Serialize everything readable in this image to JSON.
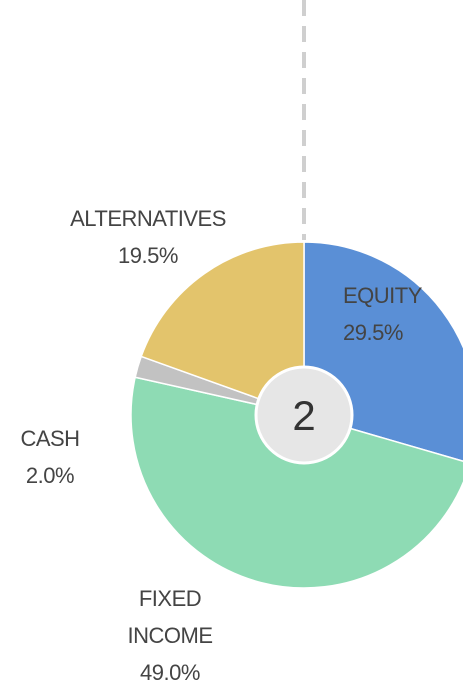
{
  "chart_data": {
    "type": "pie",
    "categories": [
      "EQUITY",
      "FIXED INCOME",
      "CASH",
      "ALTERNATIVES"
    ],
    "values": [
      29.5,
      49.0,
      2.0,
      19.5
    ],
    "value_labels": [
      "29.5%",
      "49.0%",
      "2.0%",
      "19.5%"
    ],
    "colors": [
      "#5a8fd6",
      "#8edbb4",
      "#c2c2c2",
      "#e3c46c"
    ],
    "annotation": "2"
  }
}
